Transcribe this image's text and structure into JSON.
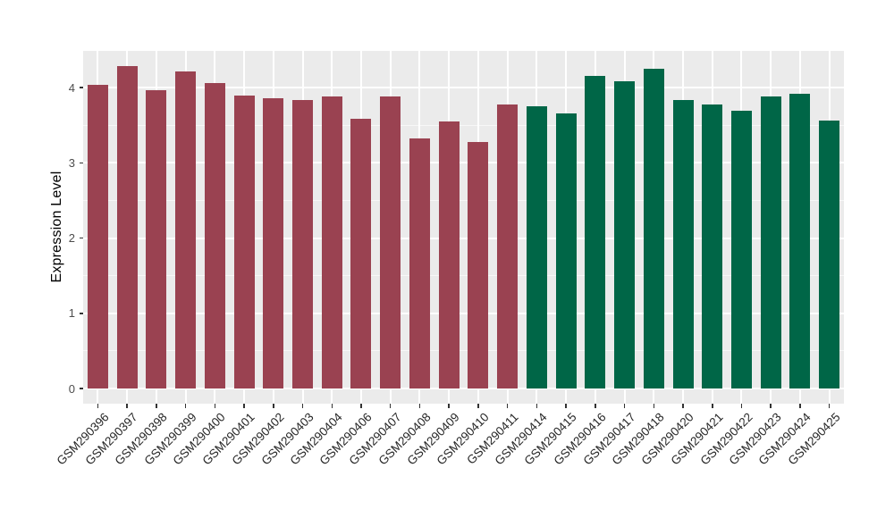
{
  "chart_data": {
    "type": "bar",
    "title": "",
    "xlabel": "",
    "ylabel": "Expression Level",
    "ylim": [
      -0.21,
      4.49
    ],
    "yticks": [
      0,
      1,
      2,
      3,
      4
    ],
    "minor_ticks": [
      0.5,
      1.5,
      2.5,
      3.5
    ],
    "grid": "on",
    "legend": "none",
    "panel_background": "#EBEBEB",
    "gridline_color": "#FFFFFF",
    "group_colors": {
      "left_group": "#9A4251",
      "right_group": "#006647"
    },
    "bars": [
      {
        "label": "GSM290396",
        "value": 4.04,
        "color": "#9A4251"
      },
      {
        "label": "GSM290397",
        "value": 4.28,
        "color": "#9A4251"
      },
      {
        "label": "GSM290398",
        "value": 3.97,
        "color": "#9A4251"
      },
      {
        "label": "GSM290399",
        "value": 4.21,
        "color": "#9A4251"
      },
      {
        "label": "GSM290400",
        "value": 4.06,
        "color": "#9A4251"
      },
      {
        "label": "GSM290401",
        "value": 3.89,
        "color": "#9A4251"
      },
      {
        "label": "GSM290402",
        "value": 3.86,
        "color": "#9A4251"
      },
      {
        "label": "GSM290403",
        "value": 3.84,
        "color": "#9A4251"
      },
      {
        "label": "GSM290404",
        "value": 3.88,
        "color": "#9A4251"
      },
      {
        "label": "GSM290406",
        "value": 3.58,
        "color": "#9A4251"
      },
      {
        "label": "GSM290407",
        "value": 3.88,
        "color": "#9A4251"
      },
      {
        "label": "GSM290408",
        "value": 3.32,
        "color": "#9A4251"
      },
      {
        "label": "GSM290409",
        "value": 3.55,
        "color": "#9A4251"
      },
      {
        "label": "GSM290410",
        "value": 3.28,
        "color": "#9A4251"
      },
      {
        "label": "GSM290411",
        "value": 3.77,
        "color": "#9A4251"
      },
      {
        "label": "GSM290414",
        "value": 3.75,
        "color": "#006647"
      },
      {
        "label": "GSM290415",
        "value": 3.66,
        "color": "#006647"
      },
      {
        "label": "GSM290416",
        "value": 4.15,
        "color": "#006647"
      },
      {
        "label": "GSM290417",
        "value": 4.08,
        "color": "#006647"
      },
      {
        "label": "GSM290418",
        "value": 4.25,
        "color": "#006647"
      },
      {
        "label": "GSM290420",
        "value": 3.83,
        "color": "#006647"
      },
      {
        "label": "GSM290421",
        "value": 3.77,
        "color": "#006647"
      },
      {
        "label": "GSM290422",
        "value": 3.69,
        "color": "#006647"
      },
      {
        "label": "GSM290423",
        "value": 3.88,
        "color": "#006647"
      },
      {
        "label": "GSM290424",
        "value": 3.92,
        "color": "#006647"
      },
      {
        "label": "GSM290425",
        "value": 3.56,
        "color": "#006647"
      }
    ]
  }
}
